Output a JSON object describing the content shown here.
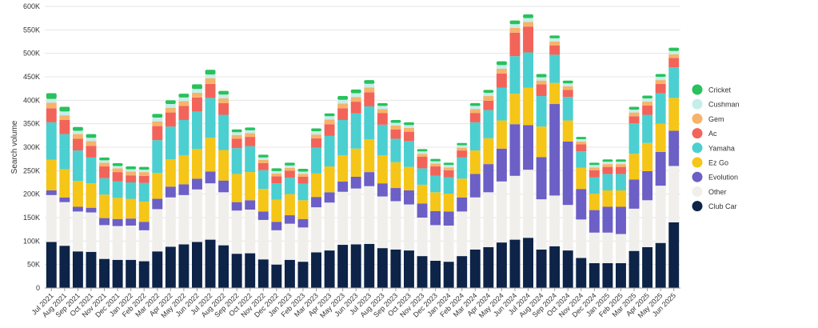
{
  "chart_data": {
    "type": "bar",
    "stacked": true,
    "ylabel": "Search volume",
    "ylim": [
      0,
      600000
    ],
    "yticks": [
      0,
      50000,
      100000,
      150000,
      200000,
      250000,
      300000,
      350000,
      400000,
      450000,
      500000,
      550000,
      600000
    ],
    "ytick_labels": [
      "0",
      "50K",
      "100K",
      "150K",
      "200K",
      "250K",
      "300K",
      "350K",
      "400K",
      "450K",
      "500K",
      "550K",
      "600K"
    ],
    "grid": true,
    "legend_position": "right",
    "categories": [
      "Jul 2021",
      "Aug 2021",
      "Sep 2021",
      "Oct 2021",
      "Nov 2021",
      "Dec 2021",
      "Jan 2022",
      "Feb 2022",
      "Mar 2022",
      "Apr 2022",
      "May 2022",
      "Jun 2022",
      "Jul 2022",
      "Aug 2022",
      "Sep 2022",
      "Oct 2022",
      "Nov 2022",
      "Dec 2022",
      "Jan 2023",
      "Feb 2023",
      "Mar 2023",
      "Apr 2023",
      "May 2023",
      "Jun 2023",
      "Jul 2023",
      "Aug 2023",
      "Sep 2023",
      "Oct 2023",
      "Nov 2023",
      "Dec 2023",
      "Jan 2024",
      "Feb 2024",
      "Mar 2024",
      "Apr 2024",
      "May 2024",
      "Jun 2024",
      "Jul 2024",
      "Aug 2024",
      "Sep 2024",
      "Oct 2024",
      "Nov 2024",
      "Dec 2024",
      "Jan 2025",
      "Feb 2025",
      "Mar 2025",
      "Apr 2025",
      "May 2025",
      "Jun 2025"
    ],
    "series": [
      {
        "name": "Club Car",
        "color": "#0d2347",
        "values": [
          98000,
          90000,
          78000,
          77000,
          62000,
          60000,
          60000,
          57000,
          78000,
          88000,
          93000,
          98000,
          103000,
          91000,
          73000,
          74000,
          61000,
          50000,
          60000,
          56000,
          76000,
          80000,
          92000,
          93000,
          94000,
          85000,
          82000,
          80000,
          68000,
          58000,
          56000,
          68000,
          82000,
          87000,
          97000,
          103000,
          107000,
          82000,
          89000,
          80000,
          64000,
          53000,
          53000,
          53000,
          79000,
          87000,
          96000,
          140000
        ]
      },
      {
        "name": "Other",
        "color": "#f1efec",
        "values": [
          100000,
          93000,
          85000,
          84000,
          72000,
          72000,
          73000,
          66000,
          90000,
          105000,
          105000,
          112000,
          120000,
          113000,
          92000,
          93000,
          84000,
          73000,
          77000,
          73000,
          96000,
          102000,
          113000,
          119000,
          123000,
          110000,
          103000,
          98000,
          82000,
          76000,
          77000,
          95000,
          111000,
          117000,
          130000,
          136000,
          145000,
          107000,
          108000,
          97000,
          82000,
          65000,
          65000,
          62000,
          90000,
          100000,
          122000,
          120000
        ]
      },
      {
        "name": "Evolution",
        "color": "#6c5fc6",
        "values": [
          10000,
          10000,
          10000,
          10000,
          15000,
          15000,
          15000,
          18000,
          22000,
          23000,
          23000,
          23000,
          25000,
          25000,
          18000,
          20000,
          18000,
          18000,
          18000,
          18000,
          22000,
          22000,
          22000,
          25000,
          30000,
          28000,
          28000,
          30000,
          30000,
          30000,
          30000,
          30000,
          50000,
          60000,
          70000,
          110000,
          95000,
          90000,
          195000,
          135000,
          65000,
          48000,
          55000,
          58000,
          62000,
          62000,
          72000,
          75000
        ]
      },
      {
        "name": "Ez Go",
        "color": "#f5c518",
        "values": [
          65000,
          60000,
          55000,
          52000,
          50000,
          45000,
          42000,
          43000,
          55000,
          58000,
          62000,
          63000,
          72000,
          65000,
          60000,
          60000,
          48000,
          47000,
          45000,
          40000,
          50000,
          55000,
          56000,
          60000,
          70000,
          60000,
          55000,
          50000,
          40000,
          40000,
          38000,
          40000,
          50000,
          55000,
          60000,
          65000,
          80000,
          65000,
          45000,
          45000,
          45000,
          35000,
          35000,
          35000,
          55000,
          60000,
          60000,
          70000
        ]
      },
      {
        "name": "Yamaha",
        "color": "#4ccfd0",
        "values": [
          80000,
          75000,
          65000,
          55000,
          35000,
          35000,
          35000,
          40000,
          70000,
          70000,
          75000,
          80000,
          85000,
          75000,
          55000,
          55000,
          40000,
          35000,
          35000,
          35000,
          55000,
          65000,
          75000,
          75000,
          70000,
          65000,
          50000,
          55000,
          35000,
          35000,
          35000,
          45000,
          60000,
          60000,
          70000,
          80000,
          75000,
          65000,
          60000,
          50000,
          35000,
          35000,
          35000,
          35000,
          65000,
          60000,
          65000,
          65000
        ]
      },
      {
        "name": "Ac",
        "color": "#f2645a",
        "values": [
          30000,
          30000,
          25000,
          25000,
          25000,
          20000,
          15000,
          15000,
          30000,
          30000,
          30000,
          30000,
          30000,
          25000,
          20000,
          20000,
          15000,
          15000,
          15000,
          15000,
          20000,
          25000,
          25000,
          25000,
          30000,
          25000,
          20000,
          20000,
          25000,
          20000,
          15000,
          15000,
          20000,
          20000,
          30000,
          50000,
          55000,
          25000,
          20000,
          15000,
          15000,
          15000,
          15000,
          15000,
          15000,
          20000,
          20000,
          20000
        ]
      },
      {
        "name": "Gem",
        "color": "#f7b36a",
        "values": [
          12000,
          10000,
          10000,
          10000,
          8000,
          8000,
          8000,
          8000,
          10000,
          10000,
          10000,
          10000,
          12000,
          10000,
          8000,
          8000,
          7000,
          6000,
          6000,
          6000,
          8000,
          10000,
          10000,
          10000,
          10000,
          8000,
          8000,
          8000,
          6000,
          6000,
          6000,
          6000,
          8000,
          10000,
          10000,
          10000,
          10000,
          8000,
          8000,
          8000,
          6000,
          6000,
          6000,
          6000,
          8000,
          8000,
          8000,
          8000
        ]
      },
      {
        "name": "Cushman",
        "color": "#c5eeea",
        "values": [
          8000,
          8000,
          7000,
          7000,
          5000,
          5000,
          5000,
          5000,
          8000,
          8000,
          8000,
          8000,
          8000,
          8000,
          6000,
          6000,
          5000,
          5000,
          5000,
          5000,
          7000,
          7000,
          8000,
          8000,
          8000,
          7000,
          6000,
          6000,
          5000,
          5000,
          5000,
          5000,
          7000,
          7000,
          8000,
          8000,
          8000,
          7000,
          7000,
          6000,
          5000,
          5000,
          5000,
          5000,
          6000,
          7000,
          7000,
          7000
        ]
      },
      {
        "name": "Cricket",
        "color": "#27c25c",
        "values": [
          12000,
          10000,
          8000,
          8000,
          6000,
          6000,
          6000,
          6000,
          8000,
          8000,
          8000,
          10000,
          10000,
          8000,
          6000,
          6000,
          6000,
          6000,
          6000,
          6000,
          6000,
          6000,
          8000,
          8000,
          8000,
          6000,
          6000,
          6000,
          5000,
          5000,
          5000,
          5000,
          6000,
          6000,
          8000,
          8000,
          8000,
          7000,
          6000,
          6000,
          5000,
          5000,
          5000,
          5000,
          6000,
          6000,
          6000,
          7000
        ]
      }
    ],
    "legend_order": [
      "Cricket",
      "Cushman",
      "Gem",
      "Ac",
      "Yamaha",
      "Ez Go",
      "Evolution",
      "Other",
      "Club Car"
    ],
    "gridline_color": "#e4e4e4",
    "axis_color": "#999999"
  }
}
